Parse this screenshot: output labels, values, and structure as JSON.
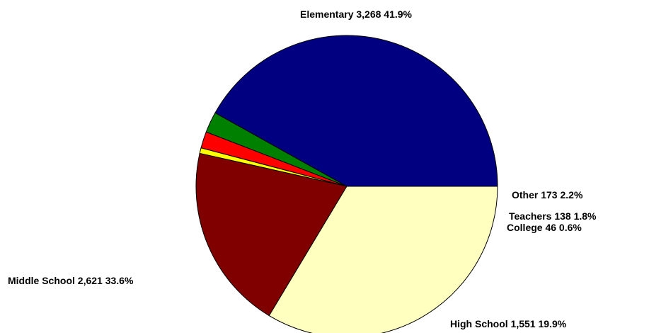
{
  "chart_data": {
    "type": "pie",
    "title": "",
    "legend": "none",
    "slices": [
      {
        "name": "Elementary",
        "value": 3268,
        "value_label": "3,268",
        "percent_label": "41.9%",
        "color": "#000080"
      },
      {
        "name": "Other",
        "value": 173,
        "value_label": "173",
        "percent_label": "2.2%",
        "color": "#008000"
      },
      {
        "name": "Teachers",
        "value": 138,
        "value_label": "138",
        "percent_label": "1.8%",
        "color": "#ff0000"
      },
      {
        "name": "College",
        "value": 46,
        "value_label": "46",
        "percent_label": "0.6%",
        "color": "#ffff00"
      },
      {
        "name": "High School",
        "value": 1551,
        "value_label": "1,551",
        "percent_label": "19.9%",
        "color": "#800000"
      },
      {
        "name": "Middle School",
        "value": 2621,
        "value_label": "2,621",
        "percent_label": "33.6%",
        "color": "#ffffc0"
      }
    ]
  }
}
